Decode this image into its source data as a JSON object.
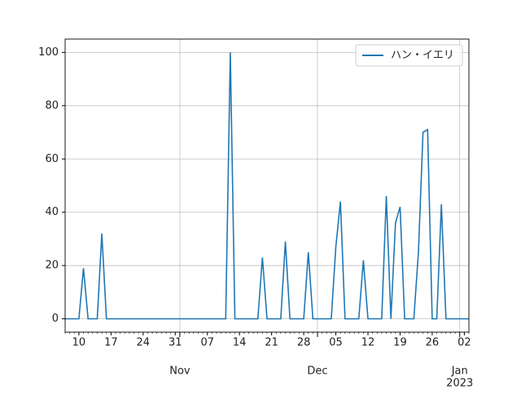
{
  "chart_data": {
    "type": "line",
    "x": [
      "2022-10-07",
      "2022-10-08",
      "2022-10-09",
      "2022-10-10",
      "2022-10-11",
      "2022-10-12",
      "2022-10-13",
      "2022-10-14",
      "2022-10-15",
      "2022-10-16",
      "2022-10-17",
      "2022-10-18",
      "2022-10-19",
      "2022-10-20",
      "2022-10-21",
      "2022-10-22",
      "2022-10-23",
      "2022-10-24",
      "2022-10-25",
      "2022-10-26",
      "2022-10-27",
      "2022-10-28",
      "2022-10-29",
      "2022-10-30",
      "2022-10-31",
      "2022-11-01",
      "2022-11-02",
      "2022-11-03",
      "2022-11-04",
      "2022-11-05",
      "2022-11-06",
      "2022-11-07",
      "2022-11-08",
      "2022-11-09",
      "2022-11-10",
      "2022-11-11",
      "2022-11-12",
      "2022-11-13",
      "2022-11-14",
      "2022-11-15",
      "2022-11-16",
      "2022-11-17",
      "2022-11-18",
      "2022-11-19",
      "2022-11-20",
      "2022-11-21",
      "2022-11-22",
      "2022-11-23",
      "2022-11-24",
      "2022-11-25",
      "2022-11-26",
      "2022-11-27",
      "2022-11-28",
      "2022-11-29",
      "2022-11-30",
      "2022-12-01",
      "2022-12-02",
      "2022-12-03",
      "2022-12-04",
      "2022-12-05",
      "2022-12-06",
      "2022-12-07",
      "2022-12-08",
      "2022-12-09",
      "2022-12-10",
      "2022-12-11",
      "2022-12-12",
      "2022-12-13",
      "2022-12-14",
      "2022-12-15",
      "2022-12-16",
      "2022-12-17",
      "2022-12-18",
      "2022-12-19",
      "2022-12-20",
      "2022-12-21",
      "2022-12-22",
      "2022-12-23",
      "2022-12-24",
      "2022-12-25",
      "2022-12-26",
      "2022-12-27",
      "2022-12-28",
      "2022-12-29",
      "2022-12-30",
      "2022-12-31",
      "2023-01-01",
      "2023-01-02",
      "2023-01-03"
    ],
    "series": [
      {
        "name": "ハン・イエリ",
        "color": "#1f77b4",
        "values": [
          0,
          0,
          0,
          0,
          19,
          0,
          0,
          0,
          32,
          0,
          0,
          0,
          0,
          0,
          0,
          0,
          0,
          0,
          0,
          0,
          0,
          0,
          0,
          0,
          0,
          0,
          0,
          0,
          0,
          0,
          0,
          0,
          0,
          0,
          0,
          0,
          100,
          0,
          0,
          0,
          0,
          0,
          0,
          23,
          0,
          0,
          0,
          0,
          29,
          0,
          0,
          0,
          0,
          25,
          0,
          0,
          0,
          0,
          0,
          27,
          44,
          0,
          0,
          0,
          0,
          22,
          0,
          0,
          0,
          0,
          46,
          0,
          36,
          42,
          0,
          0,
          0,
          25,
          70,
          71,
          0,
          0,
          43,
          0,
          0,
          0,
          0,
          0,
          0
        ]
      }
    ],
    "xlim": [
      "2022-10-07",
      "2023-01-03"
    ],
    "xticks": [
      {
        "value": "2022-10-10",
        "label": "10"
      },
      {
        "value": "2022-10-17",
        "label": "17"
      },
      {
        "value": "2022-10-24",
        "label": "24"
      },
      {
        "value": "2022-10-31",
        "label": "31"
      },
      {
        "value": "2022-11-07",
        "label": "07"
      },
      {
        "value": "2022-11-14",
        "label": "14"
      },
      {
        "value": "2022-11-21",
        "label": "21"
      },
      {
        "value": "2022-11-28",
        "label": "28"
      },
      {
        "value": "2022-12-05",
        "label": "05"
      },
      {
        "value": "2022-12-12",
        "label": "12"
      },
      {
        "value": "2022-12-19",
        "label": "19"
      },
      {
        "value": "2022-12-26",
        "label": "26"
      },
      {
        "value": "2023-01-02",
        "label": "02"
      }
    ],
    "x_major_ticks": [
      {
        "value": "2022-11-01",
        "label": "Nov"
      },
      {
        "value": "2022-12-01",
        "label": "Dec"
      },
      {
        "value": "2023-01-01",
        "label": "Jan"
      }
    ],
    "x_offset_text": "2023",
    "ylim": [
      -5,
      105
    ],
    "yticks": [
      0,
      20,
      40,
      60,
      80,
      100
    ],
    "grid": true,
    "legend": "upper right"
  }
}
